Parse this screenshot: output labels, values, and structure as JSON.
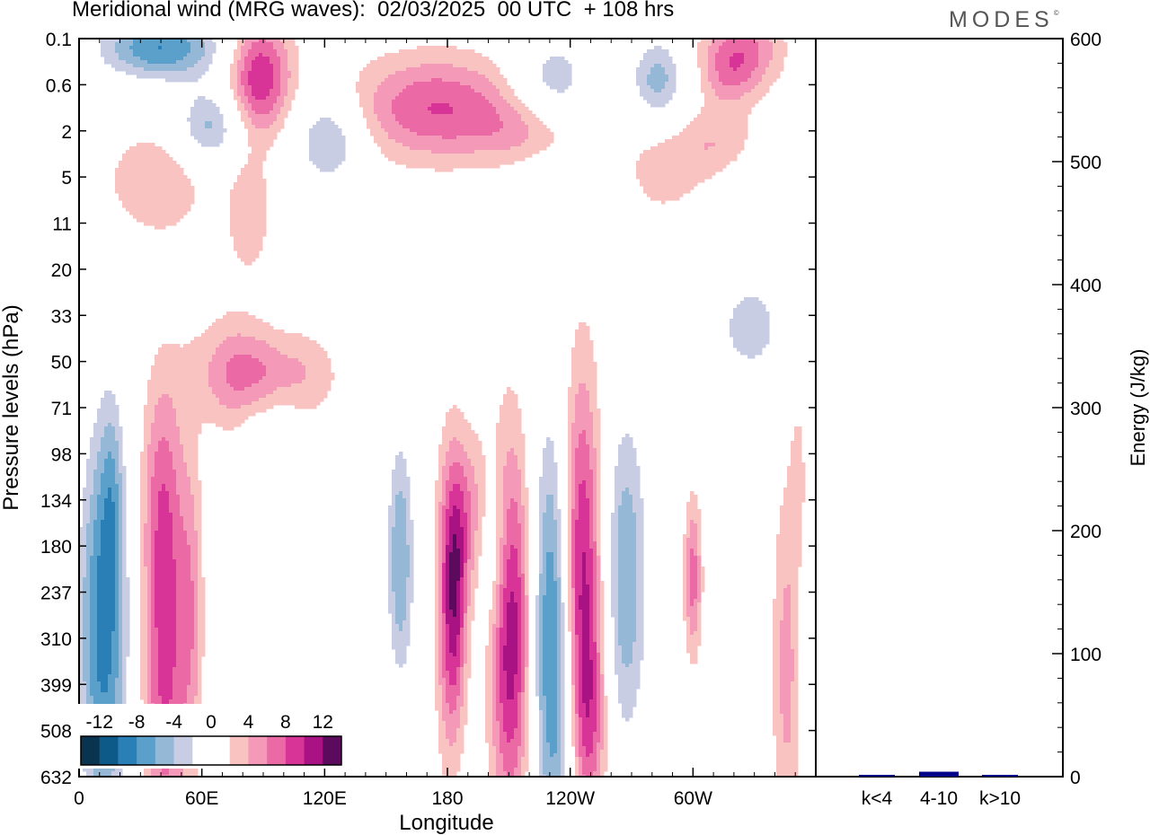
{
  "header": {
    "title": "Meridional wind (MRG waves):  02/03/2025  00 UTC  + 108 hrs",
    "logo": "MODES",
    "logo_mark": "©"
  },
  "chart_data": [
    {
      "type": "heatmap",
      "title": "Meridional wind (MRG waves):  02/03/2025  00 UTC  + 108 hrs",
      "xlabel": "Longitude",
      "ylabel": "Pressure levels (hPa)",
      "x_ticks": [
        "0",
        "60E",
        "120E",
        "180",
        "120W",
        "60W"
      ],
      "x_range_deg": [
        0,
        360
      ],
      "y_levels": [
        "0.1",
        "0.6",
        "2",
        "5",
        "11",
        "20",
        "33",
        "50",
        "71",
        "98",
        "134",
        "180",
        "237",
        "310",
        "399",
        "508",
        "632"
      ],
      "colorbar": {
        "tick_labels": [
          "-12",
          "-8",
          "-4",
          "0",
          "4",
          "8",
          "12"
        ],
        "levels": [
          -14,
          -12,
          -10,
          -8,
          -6,
          -4,
          -2,
          2,
          4,
          6,
          8,
          10,
          12,
          14
        ],
        "colors": [
          "#0a3350",
          "#0d5a88",
          "#2a7fb6",
          "#5b9fcb",
          "#96b8d7",
          "#c8cde3",
          "#ffffff",
          "#ffffff",
          "#f9c3c1",
          "#f49ab8",
          "#eb6aa6",
          "#d83396",
          "#a81283",
          "#5c0a5e"
        ]
      },
      "features": [
        {
          "lon": 12,
          "lev": 12.8,
          "v": -11,
          "wlon": 9,
          "wlev": 3.2
        },
        {
          "lon": 16,
          "lev": 9.8,
          "v": -3.5,
          "wlon": 4,
          "wlev": 1.5
        },
        {
          "lon": 42,
          "lev": 13.1,
          "v": 9,
          "wlon": 8,
          "wlev": 3.2
        },
        {
          "lon": 55,
          "lev": 12.4,
          "v": 4,
          "wlon": 4,
          "wlev": 2.4
        },
        {
          "lon": 40,
          "lev": 9.6,
          "v": 3,
          "wlon": 7,
          "wlev": 1.6
        },
        {
          "lon": 84,
          "lev": 11.9,
          "v": -3,
          "wlon": 5,
          "wlev": 2.8
        },
        {
          "lon": 96,
          "lev": 15.1,
          "v": -3,
          "wlon": 3,
          "wlev": 1.6
        },
        {
          "lon": 139,
          "lev": 13.1,
          "v": -2.5,
          "wlon": 2,
          "wlev": 1.5
        },
        {
          "lon": 157,
          "lev": 11.3,
          "v": -8,
          "wlon": 5,
          "wlev": 2.0
        },
        {
          "lon": 179,
          "lev": 12.4,
          "v": 4.5,
          "wlon": 4,
          "wlev": 2.4
        },
        {
          "lon": 184,
          "lev": 12.2,
          "v": 9,
          "wlon": 4,
          "wlev": 2.0
        },
        {
          "lon": 192,
          "lev": 10.4,
          "v": 6,
          "wlon": 8,
          "wlev": 1.3
        },
        {
          "lon": 202,
          "lev": 11.0,
          "v": -6,
          "wlon": 6,
          "wlev": 1.3
        },
        {
          "lon": 211,
          "lev": 12.8,
          "v": 12,
          "wlon": 7,
          "wlev": 2.8
        },
        {
          "lon": 234,
          "lev": 12.8,
          "v": -16,
          "wlon": 8,
          "wlev": 3.4
        },
        {
          "lon": 243,
          "lev": 11.8,
          "v": 16,
          "wlon": 8,
          "wlev": 3.1
        },
        {
          "lon": 250,
          "lev": 14.8,
          "v": 5,
          "wlon": 6,
          "wlev": 1.6
        },
        {
          "lon": 267,
          "lev": 11.7,
          "v": -8,
          "wlon": 8,
          "wlev": 2.7
        },
        {
          "lon": 300,
          "lev": 11.7,
          "v": 7,
          "wlon": 3,
          "wlev": 1.2
        },
        {
          "lon": 314,
          "lev": 13.3,
          "v": -2.5,
          "wlon": 3,
          "wlev": 1.7
        },
        {
          "lon": 346,
          "lev": 13.6,
          "v": 5,
          "wlon": 5,
          "wlev": 2.8
        },
        {
          "lon": 352,
          "lev": 9.6,
          "v": 3,
          "wlon": 3,
          "wlev": 1.3
        },
        {
          "lon": 94,
          "lev": 7.3,
          "v": 6,
          "wlon": 20,
          "wlev": 0.7
        },
        {
          "lon": 77,
          "lev": 7.2,
          "v": 3,
          "wlon": 16,
          "wlev": 1.0
        },
        {
          "lon": 97,
          "lev": 8.3,
          "v": -3,
          "wlon": 8,
          "wlev": 1.4
        },
        {
          "lon": 328,
          "lev": 6.3,
          "v": -5,
          "wlon": 14,
          "wlev": 0.9
        },
        {
          "lon": 38,
          "lev": 3.1,
          "v": 4,
          "wlon": 18,
          "wlev": 0.8
        },
        {
          "lon": 83,
          "lev": 3.8,
          "v": 3.5,
          "wlon": 8,
          "wlev": 1.0
        },
        {
          "lon": 285,
          "lev": 2.8,
          "v": 3,
          "wlon": 14,
          "wlev": 0.8
        },
        {
          "lon": 332,
          "lev": 3.6,
          "v": -3,
          "wlon": 14,
          "wlev": 1.0
        },
        {
          "lon": 235,
          "lev": 3.6,
          "v": -3,
          "wlon": 12,
          "wlev": 0.7
        },
        {
          "lon": 40,
          "lev": 0.2,
          "v": -10,
          "wlon": 22,
          "wlev": 0.5
        },
        {
          "lon": 88,
          "lev": 0.8,
          "v": 10,
          "wlon": 11,
          "wlev": 0.9
        },
        {
          "lon": 64,
          "lev": 1.9,
          "v": -7,
          "wlon": 12,
          "wlev": 0.6
        },
        {
          "lon": 122,
          "lev": 2.2,
          "v": -7,
          "wlon": 12,
          "wlev": 0.7
        },
        {
          "lon": 175,
          "lev": 1.5,
          "v": 8,
          "wlon": 30,
          "wlev": 0.8
        },
        {
          "lon": 225,
          "lev": 2.0,
          "v": 4,
          "wlon": 20,
          "wlev": 0.5
        },
        {
          "lon": 232,
          "lev": 1.0,
          "v": -6,
          "wlon": 14,
          "wlev": 0.8
        },
        {
          "lon": 283,
          "lev": 0.9,
          "v": -7,
          "wlon": 10,
          "wlev": 0.7
        },
        {
          "lon": 325,
          "lev": 0.2,
          "v": 6,
          "wlon": 15,
          "wlev": 0.6
        },
        {
          "lon": 318,
          "lev": 0.8,
          "v": 4,
          "wlon": 10,
          "wlev": 0.5
        },
        {
          "lon": 314,
          "lev": 2.3,
          "v": 4,
          "wlon": 15,
          "wlev": 0.6
        },
        {
          "lon": 5,
          "lev": 1.7,
          "v": -4,
          "wlon": 6,
          "wlev": 0.5
        }
      ]
    },
    {
      "type": "bar",
      "categories": [
        "k<4",
        "4-10",
        "k>10"
      ],
      "values": [
        1,
        4,
        1
      ],
      "ylabel": "Energy (J/kg)",
      "ylim": [
        0,
        600
      ],
      "y_ticks": [
        "0",
        "100",
        "200",
        "300",
        "400",
        "500",
        "600"
      ],
      "bar_color": "#000088"
    }
  ]
}
